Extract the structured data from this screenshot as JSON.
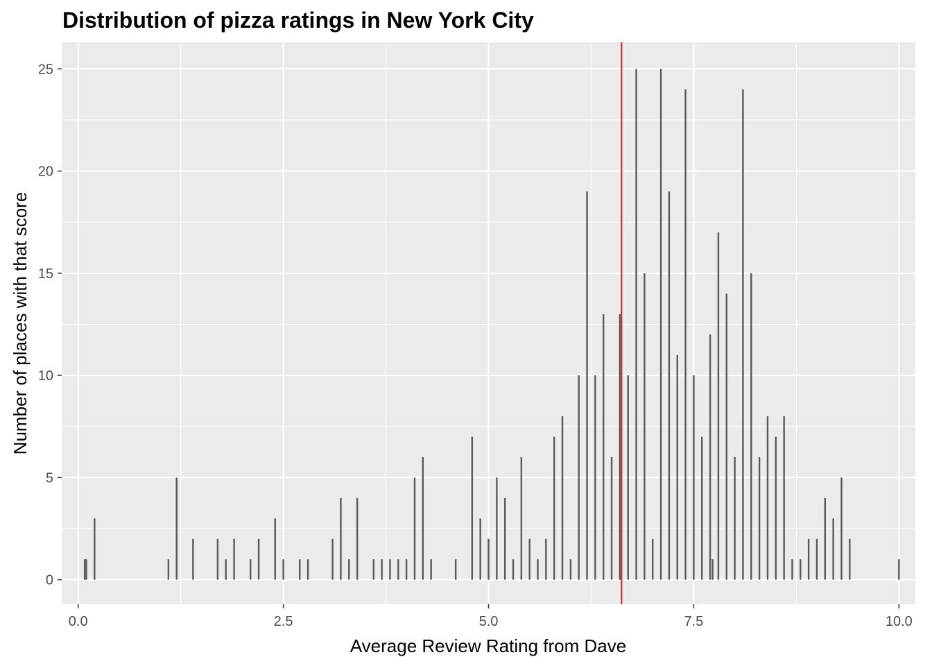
{
  "chart_data": {
    "type": "bar",
    "title": "Distribution of pizza ratings in New York City",
    "xlabel": "Average Review Rating from Dave",
    "ylabel": "Number of places with that score",
    "xlim": [
      -0.2,
      10.2
    ],
    "ylim": [
      -1.2,
      26.3
    ],
    "x_ticks": [
      0,
      2.5,
      5,
      7.5,
      10
    ],
    "x_tick_labels": [
      "0.0",
      "2.5",
      "5.0",
      "7.5",
      "10.0"
    ],
    "y_ticks": [
      0,
      5,
      10,
      15,
      20,
      25
    ],
    "y_tick_labels": [
      "0",
      "5",
      "10",
      "15",
      "20",
      "25"
    ],
    "grid": true,
    "bar_color": "#595959",
    "panel_color": "#ebebeb",
    "grid_color": "#ffffff",
    "reference_line": {
      "x": 6.62,
      "color": "#e41a1c"
    },
    "x": [
      0.08,
      0.1,
      0.2,
      1.1,
      1.2,
      1.4,
      1.7,
      1.8,
      1.9,
      2.1,
      2.2,
      2.4,
      2.5,
      2.7,
      2.8,
      3.1,
      3.2,
      3.3,
      3.4,
      3.6,
      3.7,
      3.8,
      3.9,
      4.0,
      4.1,
      4.2,
      4.3,
      4.6,
      4.8,
      4.9,
      5.0,
      5.1,
      5.2,
      5.3,
      5.4,
      5.5,
      5.6,
      5.7,
      5.8,
      5.9,
      6.0,
      6.1,
      6.2,
      6.3,
      6.4,
      6.5,
      6.6,
      6.7,
      6.8,
      6.9,
      7.0,
      7.1,
      7.2,
      7.3,
      7.4,
      7.5,
      7.6,
      7.7,
      7.73,
      7.8,
      7.9,
      8.0,
      8.1,
      8.2,
      8.3,
      8.4,
      8.5,
      8.6,
      8.7,
      8.8,
      8.9,
      9.0,
      9.1,
      9.2,
      9.3,
      9.4,
      10.0
    ],
    "values": [
      1,
      1,
      3,
      1,
      5,
      2,
      2,
      1,
      2,
      1,
      2,
      3,
      1,
      1,
      1,
      2,
      4,
      1,
      4,
      1,
      1,
      1,
      1,
      1,
      5,
      6,
      1,
      1,
      7,
      3,
      2,
      5,
      4,
      1,
      6,
      2,
      1,
      2,
      7,
      8,
      1,
      10,
      19,
      10,
      13,
      6,
      13,
      10,
      25,
      15,
      2,
      25,
      19,
      11,
      24,
      10,
      7,
      12,
      1,
      17,
      14,
      6,
      24,
      15,
      6,
      8,
      7,
      8,
      1,
      1,
      2,
      2,
      4,
      3,
      5,
      2,
      1
    ]
  }
}
